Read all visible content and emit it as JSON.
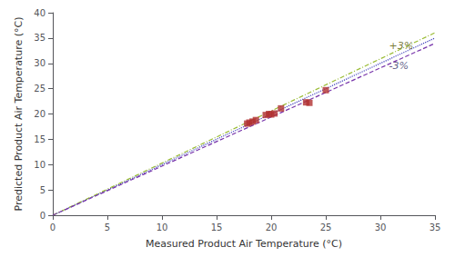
{
  "chart_data": {
    "type": "scatter",
    "xlabel": "Measured Product Air Temperature (°C)",
    "ylabel": "Predicted Product Air Temperature (°C)",
    "xlim": [
      0,
      35
    ],
    "ylim": [
      0,
      40
    ],
    "xticks": [
      0,
      5,
      10,
      15,
      20,
      25,
      30,
      35
    ],
    "yticks": [
      0,
      5,
      10,
      15,
      20,
      25,
      30,
      35,
      40
    ],
    "grid": false,
    "series": [
      {
        "type": "line",
        "color": "#4040bb",
        "line_style": "dotted",
        "x": [
          0,
          35
        ],
        "values": [
          0,
          35
        ]
      },
      {
        "type": "line",
        "color": "#99bb33",
        "line_style": "dashdot",
        "x": [
          0,
          35
        ],
        "values": [
          0,
          36.05
        ]
      },
      {
        "type": "line",
        "color": "#7733aa",
        "line_style": "dashed",
        "x": [
          0,
          35
        ],
        "values": [
          0,
          33.95
        ]
      },
      {
        "type": "scatter",
        "color": "#b03030",
        "marker": "square",
        "x": [
          17.8,
          18.0,
          18.3,
          18.6,
          19.5,
          19.8,
          20.0,
          20.3,
          20.9,
          23.2,
          23.5,
          25.0
        ],
        "values": [
          18.1,
          18.3,
          18.5,
          18.8,
          19.8,
          20.0,
          19.9,
          20.1,
          21.1,
          22.3,
          22.2,
          24.7
        ]
      }
    ],
    "annotations": [
      {
        "text": "+3%",
        "x": 30.8,
        "y": 33.5,
        "color": "#555500"
      },
      {
        "text": "-3%",
        "x": 30.8,
        "y": 29.5,
        "color": "#333366"
      }
    ]
  }
}
